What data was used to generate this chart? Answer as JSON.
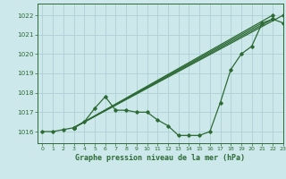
{
  "title": "Graphe pression niveau de la mer (hPa)",
  "bg_color": "#cce8ea",
  "grid_color": "#aed0d4",
  "line_color": "#2d6a35",
  "xlim": [
    -0.5,
    23
  ],
  "ylim": [
    1015.4,
    1022.6
  ],
  "yticks": [
    1016,
    1017,
    1018,
    1019,
    1020,
    1021,
    1022
  ],
  "xticks": [
    0,
    1,
    2,
    3,
    4,
    5,
    6,
    7,
    8,
    9,
    10,
    11,
    12,
    13,
    14,
    15,
    16,
    17,
    18,
    19,
    20,
    21,
    22,
    23
  ],
  "series": [
    [
      1016.0,
      1016.0,
      1016.1,
      1016.2,
      1016.5,
      1017.2,
      1017.8,
      1017.1,
      1017.1,
      1017.0,
      1017.0,
      1016.6,
      1016.3,
      1015.8,
      1015.8,
      1015.8,
      1016.0,
      1017.5,
      1019.2,
      1020.0,
      1020.4,
      1021.6,
      1021.8,
      1021.6
    ],
    [
      1016.0,
      1016.0,
      1016.1,
      1016.2,
      1016.5,
      1017.2,
      1017.8,
      1017.2,
      1017.1,
      1017.0,
      1017.0,
      1016.6,
      1016.3,
      1015.8,
      1015.8,
      1015.8,
      1016.0,
      1017.7,
      1019.2,
      1020.0,
      1020.4,
      1021.6,
      1021.8,
      1021.7
    ],
    [
      1016.0,
      1016.0,
      1016.1,
      1016.3,
      1016.6,
      1017.2,
      1017.8,
      1017.3,
      1017.1,
      1017.0,
      1017.0,
      1016.6,
      1016.3,
      1015.8,
      1015.8,
      1015.8,
      1016.1,
      1017.8,
      1019.2,
      1020.0,
      1020.4,
      1021.7,
      1021.9,
      1021.8
    ],
    [
      1016.0,
      1016.0,
      1016.2,
      1016.5,
      1017.0,
      1017.2,
      1017.8,
      1017.4,
      1017.1,
      1017.0,
      1017.0,
      1016.5,
      1016.3,
      1015.8,
      1015.7,
      1015.7,
      1016.3,
      1018.0,
      1019.2,
      1020.0,
      1020.4,
      1021.8,
      1022.0,
      1022.0
    ]
  ],
  "straight_lines": [
    {
      "x0": 0,
      "y0": 1016.0,
      "x1": 22,
      "y1": 1021.8
    },
    {
      "x0": 0,
      "y0": 1016.0,
      "x1": 22,
      "y1": 1022.0
    },
    {
      "x0": 0,
      "y0": 1016.0,
      "x1": 21,
      "y1": 1021.6
    },
    {
      "x0": 0,
      "y0": 1016.0,
      "x1": 21,
      "y1": 1021.8
    }
  ]
}
